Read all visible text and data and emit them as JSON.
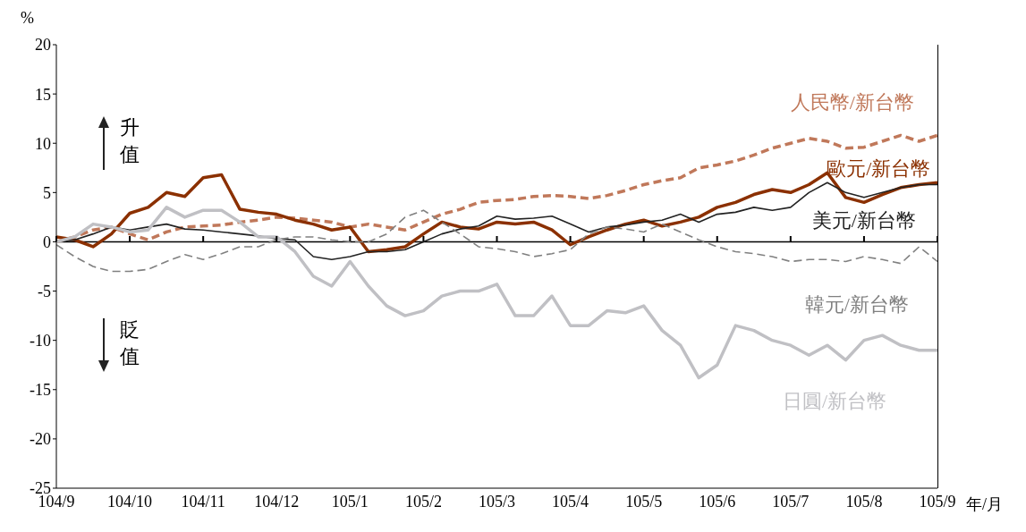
{
  "chart_data": {
    "type": "line",
    "ylabel": "%",
    "xlabel": "年/月",
    "categories": [
      "104/9",
      null,
      null,
      null,
      "104/10",
      null,
      null,
      null,
      "104/11",
      null,
      null,
      null,
      "104/12",
      null,
      null,
      null,
      "105/1",
      null,
      null,
      null,
      "105/2",
      null,
      null,
      null,
      "105/3",
      null,
      null,
      null,
      "105/4",
      null,
      null,
      null,
      "105/5",
      null,
      null,
      null,
      "105/6",
      null,
      null,
      null,
      "105/7",
      null,
      null,
      null,
      "105/8",
      null,
      null,
      null,
      "105/9"
    ],
    "series": [
      {
        "name": "人民幣/新台幣",
        "color": "#c0785a",
        "line_style": "dashed",
        "values": [
          0,
          0.5,
          1.2,
          1.5,
          0.8,
          0.2,
          1.0,
          1.5,
          1.6,
          1.7,
          2.0,
          2.2,
          2.5,
          2.4,
          2.2,
          2.0,
          1.5,
          1.8,
          1.5,
          1.2,
          2.0,
          2.8,
          3.3,
          4.0,
          4.2,
          4.3,
          4.6,
          4.7,
          4.6,
          4.4,
          4.7,
          5.2,
          5.8,
          6.2,
          6.5,
          7.5,
          7.8,
          8.2,
          8.8,
          9.5,
          10.0,
          10.5,
          10.2,
          9.5,
          9.6,
          10.2,
          10.8,
          10.2,
          10.8
        ]
      },
      {
        "name": "歐元/新台幣",
        "color": "#8b3000",
        "line_style": "solid",
        "values": [
          0.5,
          0.2,
          -0.5,
          0.8,
          2.9,
          3.5,
          5.0,
          4.6,
          6.5,
          6.8,
          3.3,
          3.0,
          2.8,
          2.2,
          1.8,
          1.2,
          1.5,
          -1.0,
          -0.8,
          -0.5,
          0.8,
          2.0,
          1.5,
          1.3,
          2.0,
          1.8,
          2.0,
          1.2,
          -0.3,
          0.5,
          1.2,
          1.8,
          2.2,
          1.6,
          2.0,
          2.5,
          3.5,
          4.0,
          4.8,
          5.3,
          5.0,
          5.8,
          7.0,
          4.5,
          4.0,
          4.8,
          5.5,
          5.8,
          6.0
        ]
      },
      {
        "name": "美元/新台幣",
        "color": "#222222",
        "line_style": "solid",
        "values": [
          0,
          0.2,
          0.8,
          1.5,
          1.2,
          1.5,
          1.8,
          1.3,
          1.2,
          1.0,
          0.8,
          0.6,
          0.3,
          0.2,
          -1.5,
          -1.8,
          -1.5,
          -1.0,
          -1.0,
          -0.8,
          0,
          0.8,
          1.3,
          1.6,
          2.6,
          2.3,
          2.4,
          2.6,
          1.8,
          1.0,
          1.5,
          1.7,
          2.0,
          2.2,
          2.8,
          2.0,
          2.8,
          3.0,
          3.5,
          3.2,
          3.5,
          5.0,
          6.0,
          5.0,
          4.5,
          5.0,
          5.5,
          5.8,
          5.8
        ]
      },
      {
        "name": "韓元/新台幣",
        "color": "#808080",
        "line_style": "dashed",
        "values": [
          -0.3,
          -1.5,
          -2.5,
          -3.0,
          -3.0,
          -2.8,
          -2.0,
          -1.3,
          -1.8,
          -1.2,
          -0.5,
          -0.5,
          0.2,
          0.5,
          0.5,
          0.2,
          0,
          0,
          0.8,
          2.5,
          3.2,
          2.0,
          0.8,
          -0.5,
          -0.7,
          -1.0,
          -1.5,
          -1.2,
          -0.8,
          0.8,
          1.5,
          1.3,
          1.0,
          1.8,
          1.0,
          0.2,
          -0.5,
          -1.0,
          -1.2,
          -1.5,
          -2.0,
          -1.8,
          -1.8,
          -2.0,
          -1.5,
          -1.8,
          -2.2,
          -0.5,
          -2.0
        ]
      },
      {
        "name": "日圓/新台幣",
        "color": "#c0c0c4",
        "line_style": "solid",
        "values": [
          0,
          0.5,
          1.8,
          1.5,
          1.0,
          1.2,
          3.5,
          2.5,
          3.2,
          3.2,
          2.0,
          0.5,
          0.5,
          -1.0,
          -3.5,
          -4.5,
          -2.0,
          -4.5,
          -6.5,
          -7.5,
          -7.0,
          -5.5,
          -5.0,
          -5.0,
          -4.3,
          -7.5,
          -7.5,
          -5.5,
          -8.5,
          -8.5,
          -7.0,
          -7.2,
          -6.5,
          -9.0,
          -10.5,
          -13.8,
          -12.5,
          -8.5,
          -9.0,
          -10.0,
          -10.5,
          -11.5,
          -10.5,
          -12.0,
          -10.0,
          -9.5,
          -10.5,
          -11.0,
          -11.0
        ]
      }
    ],
    "ylim": [
      -25,
      20
    ],
    "yticks": [
      -25,
      -20,
      -15,
      -10,
      -5,
      0,
      5,
      10,
      15,
      20
    ],
    "ref_lines": [
      {
        "axis": "y",
        "value": 0,
        "color": "#000000"
      }
    ],
    "annotations": [
      "升值",
      "貶值"
    ],
    "grid": false,
    "legend": false,
    "marker": "none"
  }
}
